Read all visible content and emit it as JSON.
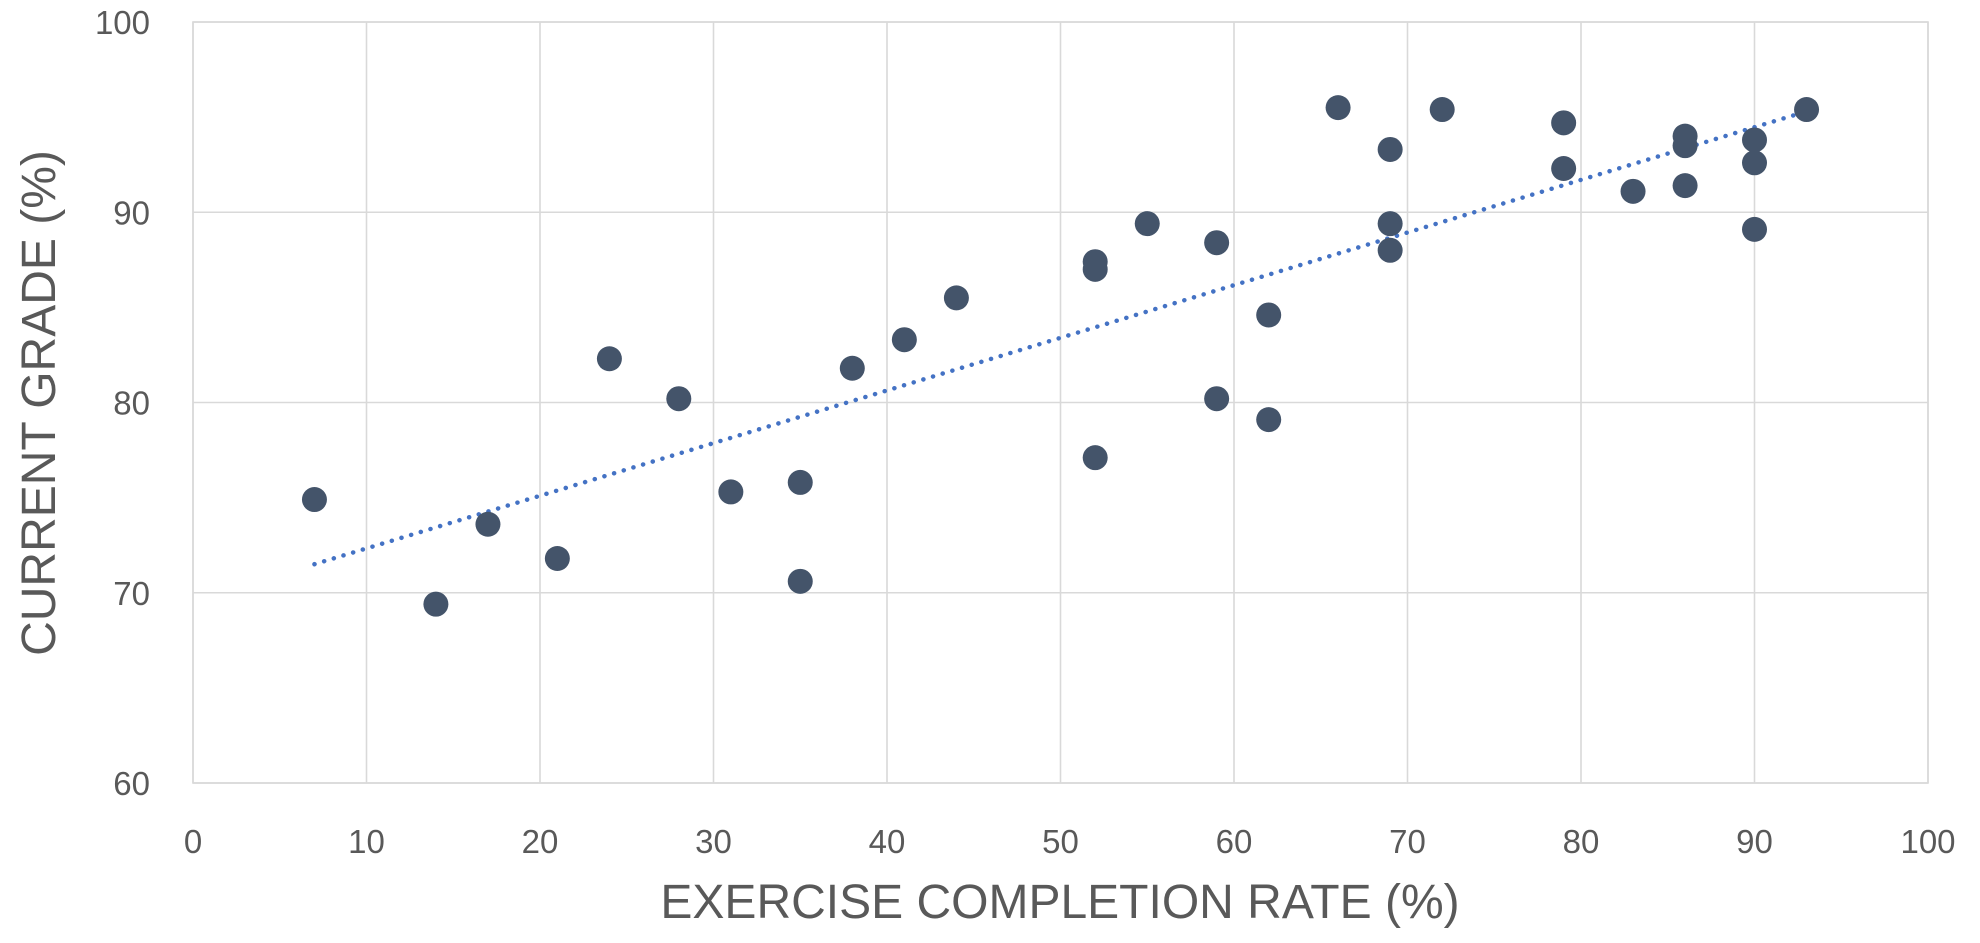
{
  "chart_data": {
    "type": "scatter",
    "title": "",
    "xlabel": "EXERCISE COMPLETION RATE (%)",
    "ylabel": "CURRENT GRADE (%)",
    "xlim": [
      0,
      100
    ],
    "ylim": [
      60,
      100
    ],
    "xticks": [
      "0",
      "10",
      "20",
      "30",
      "40",
      "50",
      "60",
      "70",
      "80",
      "90",
      "100"
    ],
    "yticks": [
      "60",
      "70",
      "80",
      "90",
      "100"
    ],
    "grid": true,
    "legend": "none",
    "colors": {
      "points": "#44546a",
      "trendline": "#4472c4",
      "grid": "#d9d9d9",
      "text": "#595959"
    },
    "series": [
      {
        "points": [
          [
            7,
            74.9
          ],
          [
            14,
            69.4
          ],
          [
            17,
            73.6
          ],
          [
            21,
            71.8
          ],
          [
            24,
            82.3
          ],
          [
            28,
            80.2
          ],
          [
            31,
            75.3
          ],
          [
            35,
            75.8
          ],
          [
            35,
            70.6
          ],
          [
            38,
            81.8
          ],
          [
            41,
            83.3
          ],
          [
            44,
            85.5
          ],
          [
            52,
            87.4
          ],
          [
            52,
            87.0
          ],
          [
            52,
            77.1
          ],
          [
            55,
            89.4
          ],
          [
            59,
            88.4
          ],
          [
            59,
            80.2
          ],
          [
            62,
            84.6
          ],
          [
            62,
            79.1
          ],
          [
            66,
            95.5
          ],
          [
            69,
            93.3
          ],
          [
            69,
            89.4
          ],
          [
            69,
            88.0
          ],
          [
            72,
            95.4
          ],
          [
            79,
            94.7
          ],
          [
            79,
            92.3
          ],
          [
            83,
            91.1
          ],
          [
            86,
            94.0
          ],
          [
            86,
            93.5
          ],
          [
            86,
            91.4
          ],
          [
            90,
            93.8
          ],
          [
            90,
            92.6
          ],
          [
            90,
            89.1
          ],
          [
            93,
            95.4
          ]
        ]
      }
    ],
    "trendline": {
      "type": "linear",
      "x": [
        7,
        93
      ],
      "y": [
        71.5,
        95.3
      ]
    }
  }
}
